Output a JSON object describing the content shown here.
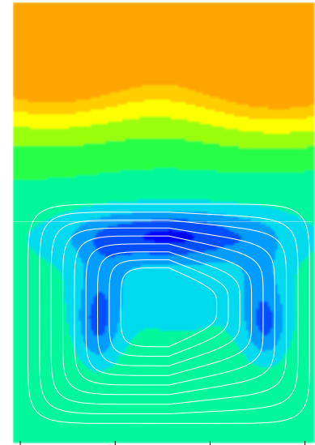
{
  "chart_data": {
    "type": "heatmap",
    "title": "",
    "xlabel": "",
    "ylabel": "",
    "colormap": [
      {
        "level": 0.0,
        "color": "#0000ff"
      },
      {
        "level": 0.12,
        "color": "#0055ff"
      },
      {
        "level": 0.25,
        "color": "#00b0ff"
      },
      {
        "level": 0.36,
        "color": "#00e8e8"
      },
      {
        "level": 0.48,
        "color": "#00ff7a"
      },
      {
        "level": 0.58,
        "color": "#33ff33"
      },
      {
        "level": 0.68,
        "color": "#aaff00"
      },
      {
        "level": 0.78,
        "color": "#ffff00"
      },
      {
        "level": 0.88,
        "color": "#ffd000"
      },
      {
        "level": 1.0,
        "color": "#ffa500"
      }
    ],
    "fill_levels": 10,
    "features": {
      "top_hot_lobes": [
        {
          "x": 0.12,
          "y": 0.06,
          "rx": 0.34,
          "ry": 0.18,
          "amp": 0.75
        },
        {
          "x": 0.89,
          "y": 0.07,
          "rx": 0.36,
          "ry": 0.19,
          "amp": 0.75
        }
      ],
      "central_band_minimum": {
        "x": 0.52,
        "y": 0.53,
        "rx": 0.32,
        "ry": 0.06,
        "amp": -0.34
      },
      "left_column_minimum": {
        "x": 0.28,
        "y": 0.74,
        "rx": 0.07,
        "ry": 0.09,
        "amp": -0.22
      },
      "right_column_minimum": {
        "x": 0.84,
        "y": 0.74,
        "rx": 0.07,
        "ry": 0.08,
        "amp": -0.22
      }
    },
    "streamline_color": "#ffffff",
    "streamline_count": 9,
    "x_tick_count": 4
  }
}
